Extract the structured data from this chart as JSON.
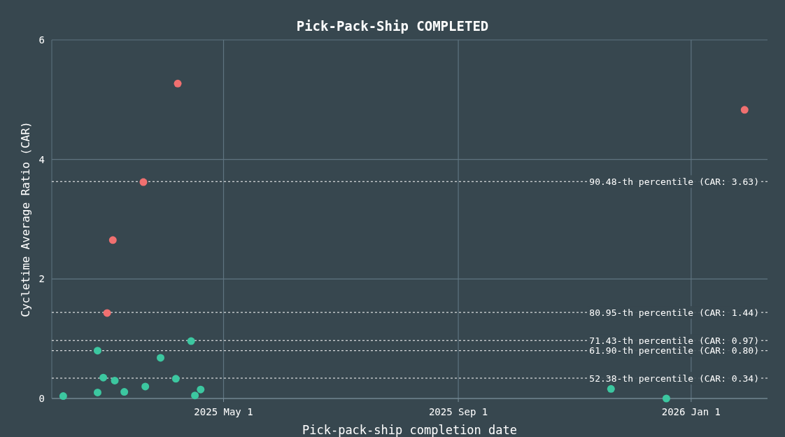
{
  "chart_data": {
    "type": "scatter",
    "title": "Pick-Pack-Ship COMPLETED",
    "xlabel": "Pick-pack-ship completion date",
    "ylabel": "Cycletime Average Ratio (CAR)",
    "xlim": [
      "2025-01-31",
      "2026-02-10"
    ],
    "xticks": [
      {
        "value": "2025-05-01",
        "label": "2025 May 1"
      },
      {
        "value": "2025-09-01",
        "label": "2025 Sep 1"
      },
      {
        "value": "2026-01-01",
        "label": "2026 Jan 1"
      }
    ],
    "ylim": [
      0,
      6
    ],
    "yticks": [
      0,
      2,
      4,
      6
    ],
    "grid": true,
    "marker": "circle",
    "series": [
      {
        "color": "#3cc7a0",
        "x": [
          "2025-02-06",
          "2025-02-24",
          "2025-02-24",
          "2025-02-27",
          "2025-03-05",
          "2025-03-10",
          "2025-03-21",
          "2025-03-29",
          "2025-04-06",
          "2025-04-14",
          "2025-04-16",
          "2025-04-19",
          "2025-11-20",
          "2025-12-19"
        ],
        "values": [
          0.04,
          0.1,
          0.8,
          0.35,
          0.3,
          0.11,
          0.2,
          0.68,
          0.33,
          0.96,
          0.05,
          0.15,
          0.16,
          0.0
        ]
      },
      {
        "color": "#f07070",
        "x": [
          "2025-03-01",
          "2025-03-04",
          "2025-03-20",
          "2025-04-07",
          "2026-01-29"
        ],
        "values": [
          1.43,
          2.65,
          3.62,
          5.27,
          4.83
        ]
      }
    ],
    "ref_lines": [
      {
        "axis": "y",
        "value": 3.63,
        "label": "90.48-th percentile (CAR: 3.63)",
        "color": "#ffffff",
        "line_style": "dotted"
      },
      {
        "axis": "y",
        "value": 1.44,
        "label": "80.95-th percentile (CAR: 1.44)",
        "color": "#ffffff",
        "line_style": "dotted"
      },
      {
        "axis": "y",
        "value": 0.97,
        "label": "71.43-th percentile (CAR: 0.97)",
        "color": "#ffffff",
        "line_style": "dotted"
      },
      {
        "axis": "y",
        "value": 0.8,
        "label": "61.90-th percentile (CAR: 0.80)",
        "color": "#ffffff",
        "line_style": "dotted"
      },
      {
        "axis": "y",
        "value": 0.34,
        "label": "52.38-th percentile (CAR: 0.34)",
        "color": "#ffffff",
        "line_style": "dotted"
      }
    ]
  }
}
